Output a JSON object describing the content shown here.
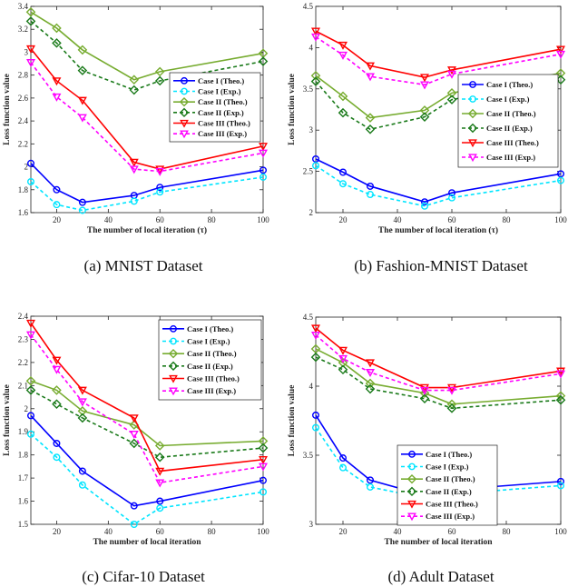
{
  "colors": {
    "case1_theo": "#0000ff",
    "case1_exp": "#00e5ff",
    "case2_theo": "#77ac30",
    "case2_exp": "#1a7a1a",
    "case3_theo": "#ff0000",
    "case3_exp": "#ff00ff"
  },
  "chart_data": [
    {
      "type": "line",
      "caption": "(a)  MNIST Dataset",
      "xlabel": "The number of local iteration (τ)",
      "ylabel": "Loss function value",
      "xlim": [
        10,
        100
      ],
      "ylim": [
        1.6,
        3.4
      ],
      "xticks": [
        20,
        40,
        60,
        80,
        100
      ],
      "yticks": [
        1.6,
        1.8,
        2,
        2.2,
        2.4,
        2.6,
        2.8,
        3,
        3.2,
        3.4
      ],
      "ytick_labels": [
        "1.6",
        "1.8",
        "2",
        "2.2",
        "2.4",
        "2.6",
        "2.8",
        "3",
        "3.2",
        "3.4"
      ],
      "legend_position": "center-right",
      "x": [
        10,
        20,
        30,
        50,
        60,
        100
      ],
      "series": [
        {
          "name": "Case I (Theo.)",
          "values": [
            2.03,
            1.8,
            1.69,
            1.75,
            1.82,
            1.97
          ]
        },
        {
          "name": "Case I (Exp.)",
          "values": [
            1.87,
            1.67,
            1.62,
            1.7,
            1.78,
            1.91
          ]
        },
        {
          "name": "Case II (Theo.)",
          "values": [
            3.35,
            3.21,
            3.02,
            2.76,
            2.83,
            2.99
          ]
        },
        {
          "name": "Case II (Exp.)",
          "values": [
            3.27,
            3.08,
            2.84,
            2.67,
            2.75,
            2.92
          ]
        },
        {
          "name": "Case III (Theo.)",
          "values": [
            3.03,
            2.75,
            2.58,
            2.04,
            1.98,
            2.18
          ]
        },
        {
          "name": "Case III (Exp.)",
          "values": [
            2.91,
            2.61,
            2.43,
            1.98,
            1.96,
            2.12
          ]
        }
      ]
    },
    {
      "type": "line",
      "caption": "(b)  Fashion-MNIST Dataset",
      "xlabel": "The number of local iteration (τ)",
      "ylabel": "Loss function value",
      "xlim": [
        10,
        100
      ],
      "ylim": [
        2,
        4.5
      ],
      "xticks": [
        20,
        40,
        60,
        80,
        100
      ],
      "yticks": [
        2,
        2.5,
        3,
        3.5,
        4,
        4.5
      ],
      "ytick_labels": [
        "2",
        "2.5",
        "3",
        "3.5",
        "4",
        "4.5"
      ],
      "legend_position": "center-right",
      "x": [
        10,
        20,
        30,
        50,
        60,
        100
      ],
      "series": [
        {
          "name": "Case I (Theo.)",
          "values": [
            2.65,
            2.49,
            2.32,
            2.13,
            2.24,
            2.47
          ]
        },
        {
          "name": "Case I (Exp.)",
          "values": [
            2.57,
            2.35,
            2.22,
            2.08,
            2.18,
            2.39
          ]
        },
        {
          "name": "Case II (Theo.)",
          "values": [
            3.66,
            3.41,
            3.15,
            3.24,
            3.45,
            3.69
          ]
        },
        {
          "name": "Case II (Exp.)",
          "values": [
            3.59,
            3.21,
            3.01,
            3.16,
            3.37,
            3.61
          ]
        },
        {
          "name": "Case III (Theo.)",
          "values": [
            4.2,
            4.03,
            3.78,
            3.64,
            3.73,
            3.98
          ]
        },
        {
          "name": "Case III (Exp.)",
          "values": [
            4.13,
            3.91,
            3.65,
            3.55,
            3.68,
            3.92
          ]
        }
      ]
    },
    {
      "type": "line",
      "caption": "(c)  Cifar-10 Dataset",
      "xlabel": "The number of local iteration",
      "ylabel": "Loss function value",
      "xlim": [
        10,
        100
      ],
      "ylim": [
        1.5,
        2.4
      ],
      "xticks": [
        20,
        40,
        60,
        80,
        100
      ],
      "yticks": [
        1.5,
        1.6,
        1.7,
        1.8,
        1.9,
        2,
        2.1,
        2.2,
        2.3,
        2.4
      ],
      "ytick_labels": [
        "1.5",
        "1.6",
        "1.7",
        "1.8",
        "1.9",
        "2",
        "2.1",
        "2.2",
        "2.3",
        "2.4"
      ],
      "legend_position": "top-right",
      "x": [
        10,
        20,
        30,
        50,
        60,
        100
      ],
      "series": [
        {
          "name": "Case I (Theo.)",
          "values": [
            1.97,
            1.85,
            1.73,
            1.58,
            1.6,
            1.69
          ]
        },
        {
          "name": "Case I (Exp.)",
          "values": [
            1.89,
            1.79,
            1.67,
            1.5,
            1.57,
            1.64
          ]
        },
        {
          "name": "Case II (Theo.)",
          "values": [
            2.12,
            2.08,
            1.99,
            1.93,
            1.84,
            1.86
          ]
        },
        {
          "name": "Case II (Exp.)",
          "values": [
            2.08,
            2.02,
            1.96,
            1.85,
            1.79,
            1.83
          ]
        },
        {
          "name": "Case III (Theo.)",
          "values": [
            2.37,
            2.21,
            2.08,
            1.96,
            1.73,
            1.78
          ]
        },
        {
          "name": "Case III (Exp.)",
          "values": [
            2.32,
            2.17,
            2.03,
            1.89,
            1.68,
            1.75
          ]
        }
      ]
    },
    {
      "type": "line",
      "caption": "(d)  Adult Dataset",
      "xlabel": "The number of local iteration",
      "ylabel": "Loss function value",
      "xlim": [
        10,
        100
      ],
      "ylim": [
        3,
        4.5
      ],
      "xticks": [
        20,
        40,
        60,
        80,
        100
      ],
      "yticks": [
        3,
        3.5,
        4,
        4.5
      ],
      "ytick_labels": [
        "3",
        "3.5",
        "4",
        "4.5"
      ],
      "legend_position": "bottom-center",
      "x": [
        10,
        20,
        30,
        50,
        60,
        100
      ],
      "series": [
        {
          "name": "Case I (Theo.)",
          "values": [
            3.79,
            3.48,
            3.32,
            3.21,
            3.25,
            3.31
          ]
        },
        {
          "name": "Case I (Exp.)",
          "values": [
            3.7,
            3.41,
            3.27,
            3.19,
            3.22,
            3.28
          ]
        },
        {
          "name": "Case II (Theo.)",
          "values": [
            4.27,
            4.17,
            4.02,
            3.95,
            3.87,
            3.93
          ]
        },
        {
          "name": "Case II (Exp.)",
          "values": [
            4.21,
            4.12,
            3.98,
            3.91,
            3.84,
            3.9
          ]
        },
        {
          "name": "Case III (Theo.)",
          "values": [
            4.42,
            4.26,
            4.17,
            3.99,
            3.99,
            4.11
          ]
        },
        {
          "name": "Case III (Exp.)",
          "values": [
            4.37,
            4.2,
            4.1,
            3.97,
            3.97,
            4.09
          ]
        }
      ]
    }
  ]
}
